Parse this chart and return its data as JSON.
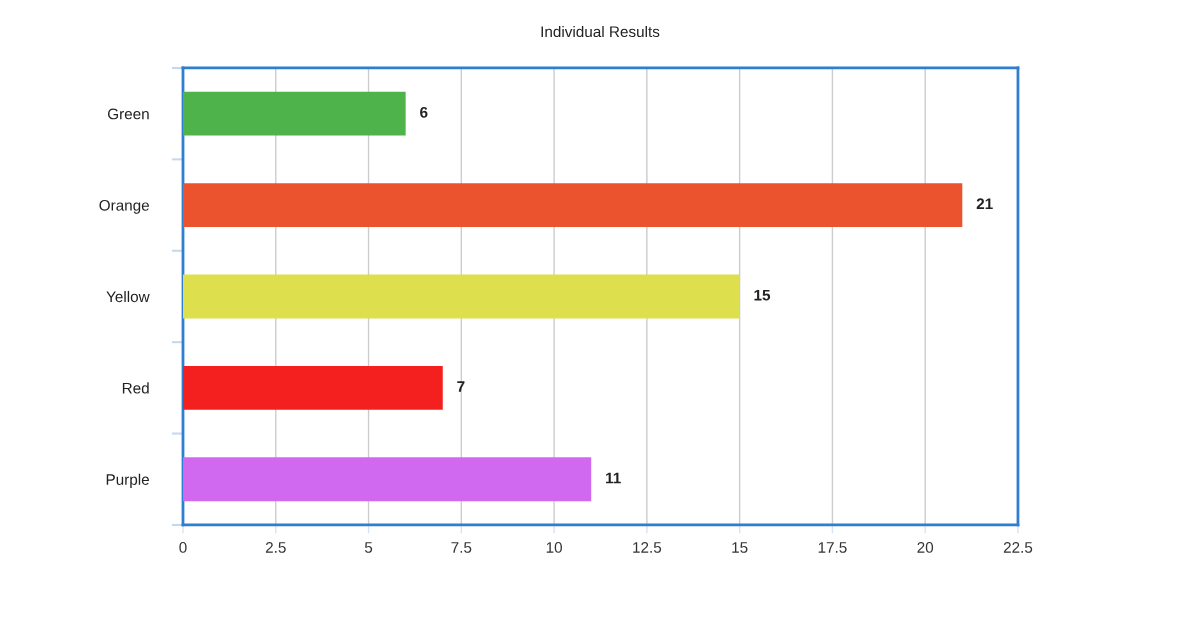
{
  "chart_data": {
    "type": "bar",
    "orientation": "horizontal",
    "title": "Individual Results",
    "categories": [
      "Green",
      "Orange",
      "Yellow",
      "Red",
      "Purple"
    ],
    "values": [
      6,
      21,
      15,
      7,
      11
    ],
    "colors": [
      "#4fb34b",
      "#ea532d",
      "#dde04c",
      "#f41f1f",
      "#d068f0"
    ],
    "xlim": [
      0,
      22.5
    ],
    "xticks": [
      0,
      2.5,
      5,
      7.5,
      10,
      12.5,
      15,
      17.5,
      20,
      22.5
    ],
    "grid": "x",
    "legend": false,
    "data_labels": true
  }
}
